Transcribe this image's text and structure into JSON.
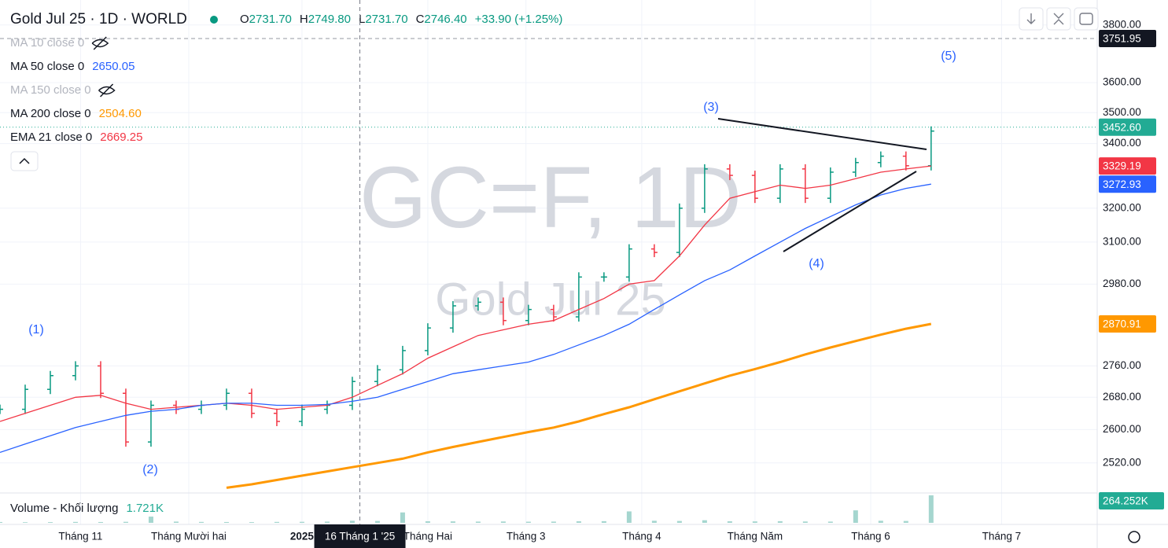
{
  "chart_data": {
    "type": "ohlc",
    "symbol": "Gold Jul 25 · 1D · WORLD",
    "ohlc": [
      {
        "label": "O",
        "value": "2731.70"
      },
      {
        "label": "H",
        "value": "2749.80"
      },
      {
        "label": "L",
        "value": "2731.70"
      },
      {
        "label": "C",
        "value": "2746.40"
      }
    ],
    "change": "+33.90 (+1.25%)",
    "indicators": [
      {
        "name": "MA 10 close 0",
        "hidden": true
      },
      {
        "name": "MA 50 close 0",
        "value": "2650.05",
        "color": "#2962ff"
      },
      {
        "name": "MA 150 close 0",
        "hidden": true
      },
      {
        "name": "MA 200 close 0",
        "value": "2504.60",
        "color": "#ff9800"
      },
      {
        "name": "EMA 21 close 0",
        "value": "2669.25",
        "color": "#f23645"
      }
    ],
    "watermark": "GC=F, 1D",
    "watermark_sub": "Gold Jul 25",
    "wave_labels": [
      "(1)",
      "(2)",
      "(3)",
      "(4)",
      "(5)"
    ],
    "log": true,
    "xlim": [
      0,
      43.6
    ],
    "xticks": [
      {
        "value": 3.2,
        "label": "Tháng 11"
      },
      {
        "value": 7.5,
        "label": "Tháng Mười hai"
      },
      {
        "value": 12,
        "label": "2025"
      },
      {
        "value": 17,
        "label": "Tháng Hai"
      },
      {
        "value": 20.9,
        "label": "Tháng 3"
      },
      {
        "value": 25.5,
        "label": "Tháng 4"
      },
      {
        "value": 30,
        "label": "Tháng Năm"
      },
      {
        "value": 34.6,
        "label": "Tháng 6"
      },
      {
        "value": 39.8,
        "label": "Tháng 7"
      }
    ],
    "crosshair": {
      "value": 14.3,
      "label": "16 Tháng 1 '25"
    },
    "ylim": [
      2450,
      3890
    ],
    "yticks": [
      {
        "value": 3800,
        "label": "3800.00"
      },
      {
        "value": 3600,
        "label": "3600.00"
      },
      {
        "value": 3500,
        "label": "3500.00"
      },
      {
        "value": 3400,
        "label": "3400.00"
      },
      {
        "value": 3200,
        "label": "3200.00"
      },
      {
        "value": 3100,
        "label": "3100.00"
      },
      {
        "value": 2980,
        "label": "2980.00"
      },
      {
        "value": 2760,
        "label": "2760.00"
      },
      {
        "value": 2680,
        "label": "2680.00"
      },
      {
        "value": 2600,
        "label": "2600.00"
      },
      {
        "value": 2520,
        "label": "2520.00"
      }
    ],
    "price_markers": [
      {
        "value": 3751.95,
        "label": "3751.95",
        "color": "#131722"
      },
      {
        "value": 3452.6,
        "label": "3452.60",
        "color": "#22ab94"
      },
      {
        "value": 3329.19,
        "label": "3329.19",
        "color": "#f23645"
      },
      {
        "value": 3272.93,
        "label": "3272.93",
        "color": "#2962ff"
      },
      {
        "value": 2870.91,
        "label": "2870.91",
        "color": "#ff9800"
      }
    ],
    "series": [
      {
        "name": "Gold Jul 25",
        "color": "#089981",
        "down_color": "#f23645",
        "values": [
          2650,
          2700,
          2735,
          2760,
          2690,
          2570,
          2660,
          2650,
          2660,
          2690,
          2640,
          2620,
          2650,
          2660,
          2720,
          2750,
          2800,
          2860,
          2920,
          2930,
          2880,
          2910,
          2890,
          3000,
          3000,
          3080,
          3070,
          3200,
          3320,
          3300,
          3230,
          3320,
          3230,
          3310,
          3340,
          3360,
          3330,
          3440
        ]
      },
      {
        "name": "EMA 21",
        "color": "#f23645",
        "values": [
          2620,
          2640,
          2660,
          2680,
          2685,
          2665,
          2650,
          2655,
          2660,
          2665,
          2660,
          2650,
          2655,
          2660,
          2680,
          2710,
          2740,
          2780,
          2810,
          2840,
          2855,
          2870,
          2880,
          2910,
          2940,
          2980,
          2990,
          3060,
          3150,
          3230,
          3250,
          3270,
          3260,
          3270,
          3290,
          3310,
          3320,
          3329.19
        ]
      },
      {
        "name": "MA 50",
        "color": "#2962ff",
        "values": [
          2545,
          2565,
          2585,
          2605,
          2620,
          2635,
          2645,
          2650,
          2660,
          2665,
          2665,
          2660,
          2660,
          2662,
          2670,
          2680,
          2700,
          2720,
          2740,
          2750,
          2760,
          2770,
          2790,
          2815,
          2840,
          2870,
          2910,
          2950,
          2990,
          3020,
          3060,
          3100,
          3140,
          3175,
          3210,
          3240,
          3260,
          3272.93
        ]
      },
      {
        "name": "MA 200",
        "color": "#ff9800",
        "values": [
          null,
          null,
          null,
          null,
          null,
          null,
          null,
          null,
          null,
          2462,
          2470,
          2480,
          2490,
          2500,
          2510,
          2520,
          2530,
          2545,
          2558,
          2570,
          2582,
          2594,
          2605,
          2620,
          2638,
          2655,
          2675,
          2695,
          2715,
          2735,
          2752,
          2770,
          2790,
          2808,
          2825,
          2842,
          2858,
          2870.91
        ]
      }
    ],
    "volume": {
      "name": "Volume - Khối lượng",
      "value_text": "1.721K",
      "marker": {
        "value": 264252,
        "label": "264.252K"
      },
      "color": "#a5d6cf",
      "values": [
        8000,
        6000,
        7000,
        9000,
        8000,
        10000,
        60000,
        12000,
        9000,
        8000,
        7000,
        9000,
        10000,
        12000,
        20000,
        18000,
        100000,
        15000,
        14000,
        12000,
        13000,
        11000,
        12000,
        15000,
        16000,
        110000,
        20000,
        18000,
        25000,
        15000,
        14000,
        16000,
        13000,
        12000,
        120000,
        20000,
        18000,
        264252
      ]
    }
  }
}
